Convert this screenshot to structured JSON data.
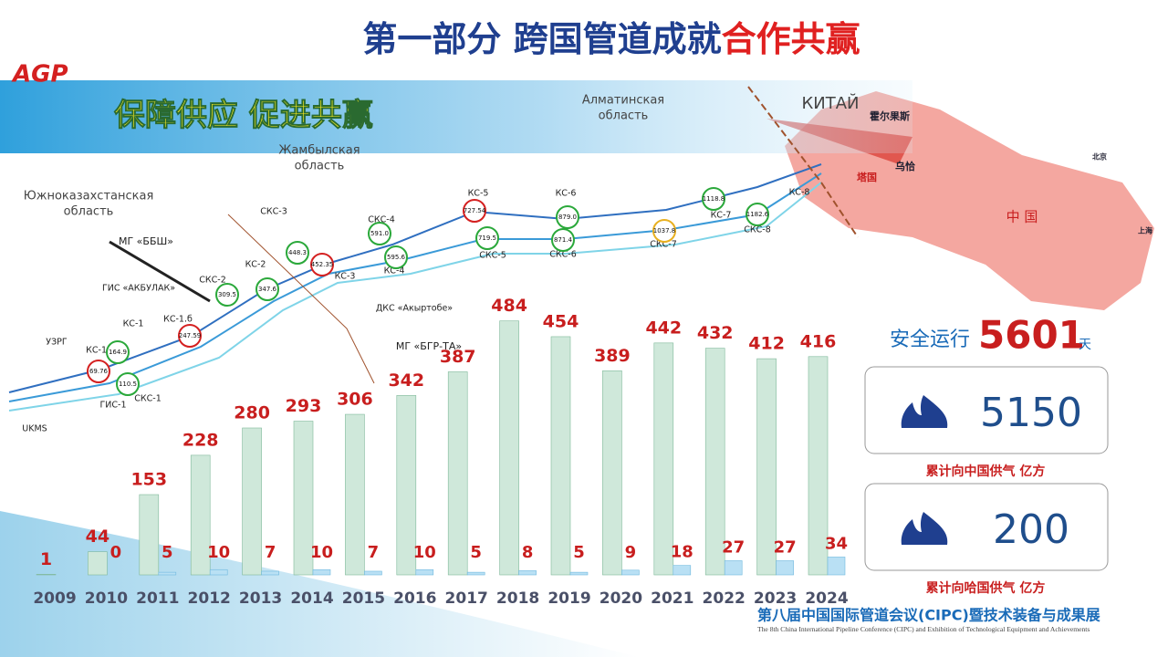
{
  "header": {
    "logo": "AGP",
    "title_main": "第一部分 跨国管道成就",
    "title_accent": "合作共赢",
    "banner": "保障供应 促进共赢"
  },
  "map": {
    "regions": [
      "Южноказахстанская",
      "область",
      "Жамбылская",
      "область",
      "Алматинская",
      "область",
      "КИТАЙ",
      "中 国"
    ],
    "cities": [
      "霍尔果斯",
      "乌恰",
      "塔国",
      "北京",
      "上海"
    ],
    "stations": [
      "КС-1",
      "КС-1.б",
      "КС-1.а",
      "СКС-2",
      "КС-2",
      "СКС-3",
      "КС-3",
      "КС-4",
      "СКС-4",
      "КС-5",
      "СКС-5",
      "КС-6",
      "СКС-6",
      "КС-7",
      "СКС-7",
      "КС-8",
      "СКС-8",
      "ГИС-1",
      "СКС-1",
      "УЗРГ",
      "UKMS",
      "ДКС «Акыртобе»",
      "ГИС «АКБУЛАК»",
      "МГ «ББШ»",
      "МГ «БГР-ТА»"
    ],
    "markers": [
      "69.76",
      "110.5",
      "164.9",
      "247.59",
      "309.5",
      "347.6",
      "448.3",
      "452.35",
      "591.0",
      "595.6",
      "727.54",
      "719.5",
      "879.0",
      "871.4",
      "1037.8",
      "1118.8",
      "1182.6"
    ]
  },
  "stats": {
    "safe_label": "安全运行",
    "safe_days": 5601,
    "safe_unit": "天",
    "panels": [
      {
        "value": 5150,
        "label": "累计向中国供气 亿方"
      },
      {
        "value": 200,
        "label": "累计向哈国供气 亿方"
      }
    ]
  },
  "chart_data": {
    "type": "bar",
    "categories": [
      "2009",
      "2010",
      "2011",
      "2012",
      "2013",
      "2014",
      "2015",
      "2016",
      "2017",
      "2018",
      "2019",
      "2020",
      "2021",
      "2022",
      "2023",
      "2024"
    ],
    "series": [
      {
        "color": "#cfe8da",
        "values": [
          1,
          44,
          153,
          228,
          280,
          293,
          306,
          342,
          387,
          484,
          454,
          389,
          442,
          432,
          412,
          416
        ]
      },
      {
        "color": "#b9e0f4",
        "values": [
          null,
          0,
          5,
          10,
          7,
          10,
          7,
          10,
          5,
          8,
          5,
          9,
          18,
          27,
          27,
          34
        ]
      }
    ]
  },
  "footer": {
    "cn": "第八届中国国际管道会议(CIPC)暨技术装备与成果展",
    "en": "The 8th China International Pipeline Conference (CIPC) and Exhibition of Technological Equipment and Achievements"
  }
}
